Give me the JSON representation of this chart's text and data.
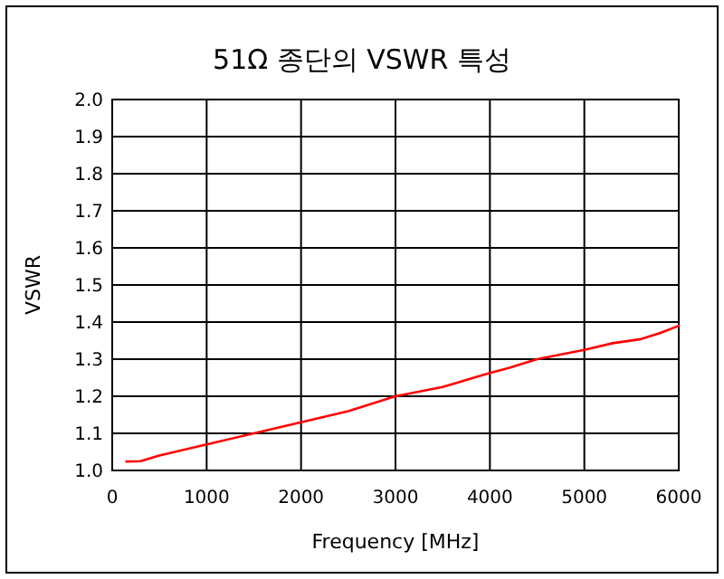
{
  "chart_data": {
    "type": "line",
    "title": "51Ω 종단의 VSWR 특성",
    "xlabel": "Frequency  [MHz]",
    "ylabel": "VSWR",
    "xlim": [
      0,
      6000
    ],
    "xticks": [
      0,
      1000,
      2000,
      3000,
      4000,
      5000,
      6000
    ],
    "ylim": [
      1.0,
      2.0
    ],
    "yticks": [
      {
        "value": 1.0,
        "label": "1.0"
      },
      1.1,
      1.2,
      1.3,
      1.4,
      1.5,
      1.6,
      1.7,
      1.8,
      1.9,
      {
        "value": 2.0,
        "label": "2.0"
      }
    ],
    "grid": true,
    "series": [
      {
        "color": "#ff0000",
        "x": [
          150,
          300,
          500,
          1000,
          1500,
          2000,
          2500,
          3000,
          3500,
          4000,
          4200,
          4500,
          5000,
          5300,
          5600,
          5800,
          6000
        ],
        "values": [
          1.024,
          1.025,
          1.04,
          1.07,
          1.1,
          1.13,
          1.16,
          1.2,
          1.225,
          1.263,
          1.276,
          1.3,
          1.325,
          1.343,
          1.354,
          1.37,
          1.39
        ]
      }
    ]
  }
}
